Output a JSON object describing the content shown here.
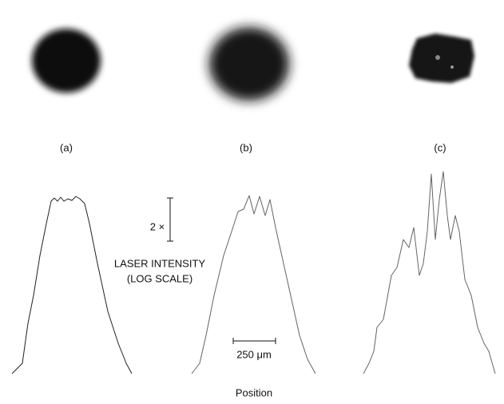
{
  "panels": [
    {
      "label": "(a)"
    },
    {
      "label": "(b)"
    },
    {
      "label": "(c)"
    }
  ],
  "scale_bars": {
    "vertical": "2 ×",
    "horizontal": "250 μm"
  },
  "axes": {
    "y_label": [
      "LASER INTENSITY",
      "(LOG SCALE)"
    ],
    "x_label": "Position"
  }
}
